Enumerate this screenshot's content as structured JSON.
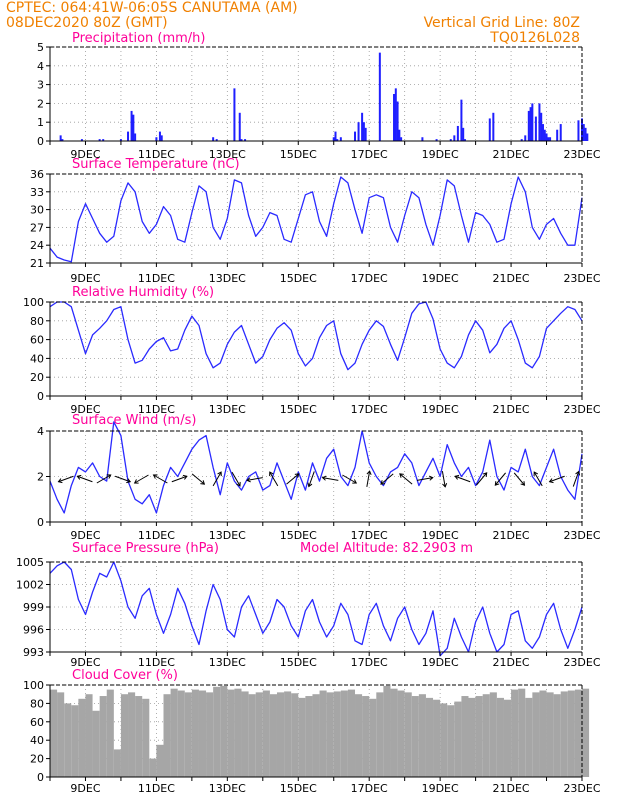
{
  "header": {
    "line1": "CPTEC:   064:41W-06:05S   CANUTAMA (AM)",
    "line2_left": "08DEC2020 80Z (GMT)",
    "line2_right": "Vertical Grid Line: 80Z",
    "line3_right": "TQ0126L028"
  },
  "colors": {
    "header": "#f08000",
    "title": "#ff0099",
    "series": "#2a2aff",
    "bar": "#1f1fff",
    "cloud": "#a6a6a6",
    "grid": "#9a9a9a"
  },
  "x_axis": {
    "start_day": 8,
    "end_day": 23,
    "labels": [
      "9DEC",
      "11DEC",
      "13DEC",
      "15DEC",
      "17DEC",
      "19DEC",
      "21DEC",
      "23DEC"
    ],
    "label_days": [
      9,
      11,
      13,
      15,
      17,
      19,
      21,
      23
    ]
  },
  "chart_data": [
    {
      "type": "bar",
      "title": "Precipitation (mm/h)",
      "ylim": [
        0,
        5
      ],
      "yticks": [
        0,
        1,
        2,
        3,
        4,
        5
      ],
      "x": [
        8.3,
        8.35,
        8.9,
        9.4,
        9.5,
        10.0,
        10.2,
        10.3,
        10.35,
        10.4,
        11.0,
        11.1,
        11.15,
        12.6,
        12.7,
        13.2,
        13.35,
        13.4,
        13.5,
        16.0,
        16.05,
        16.1,
        16.2,
        16.6,
        16.7,
        16.8,
        16.85,
        16.9,
        17.3,
        17.7,
        17.75,
        17.8,
        17.85,
        17.9,
        18.5,
        18.9,
        19.3,
        19.4,
        19.5,
        19.6,
        19.65,
        19.7,
        20.4,
        20.5,
        21.3,
        21.4,
        21.5,
        21.55,
        21.6,
        21.7,
        21.8,
        21.85,
        21.9,
        21.95,
        22.0,
        22.05,
        22.1,
        22.3,
        22.4,
        22.9,
        23.0,
        23.05,
        23.1,
        23.15
      ],
      "values": [
        0.3,
        0.1,
        0.1,
        0.1,
        0.1,
        0.1,
        0.5,
        1.6,
        1.4,
        0.4,
        0.2,
        0.5,
        0.3,
        0.2,
        0.1,
        2.8,
        1.5,
        0.1,
        0.1,
        0.2,
        0.5,
        0.1,
        0.2,
        0.5,
        1.0,
        1.5,
        1.0,
        0.7,
        4.7,
        2.5,
        2.8,
        2.1,
        0.6,
        0.2,
        0.2,
        0.1,
        0.1,
        0.3,
        0.8,
        2.2,
        0.7,
        0.1,
        1.2,
        1.5,
        0.1,
        0.3,
        1.6,
        1.8,
        2.0,
        1.3,
        2.0,
        1.5,
        0.9,
        0.6,
        0.4,
        0.2,
        0.2,
        0.6,
        0.9,
        1.1,
        1.2,
        0.9,
        0.7,
        0.4
      ]
    },
    {
      "type": "line",
      "title": "Surface Temperature (nC)",
      "ylim": [
        21,
        36
      ],
      "yticks": [
        21,
        24,
        27,
        30,
        33,
        36
      ],
      "x": [
        8.0,
        8.2,
        8.4,
        8.6,
        8.8,
        9.0,
        9.2,
        9.4,
        9.6,
        9.8,
        10.0,
        10.2,
        10.4,
        10.6,
        10.8,
        11.0,
        11.2,
        11.4,
        11.6,
        11.8,
        12.0,
        12.2,
        12.4,
        12.6,
        12.8,
        13.0,
        13.2,
        13.4,
        13.6,
        13.8,
        14.0,
        14.2,
        14.4,
        14.6,
        14.8,
        15.0,
        15.2,
        15.4,
        15.6,
        15.8,
        16.0,
        16.2,
        16.4,
        16.6,
        16.8,
        17.0,
        17.2,
        17.4,
        17.6,
        17.8,
        18.0,
        18.2,
        18.4,
        18.6,
        18.8,
        19.0,
        19.2,
        19.4,
        19.6,
        19.8,
        20.0,
        20.2,
        20.4,
        20.6,
        20.8,
        21.0,
        21.2,
        21.4,
        21.6,
        21.8,
        22.0,
        22.2,
        22.4,
        22.6,
        22.8,
        23.0
      ],
      "values": [
        23.5,
        22.0,
        21.5,
        21.2,
        28.0,
        31.0,
        28.5,
        26.0,
        24.5,
        25.5,
        31.5,
        34.5,
        33.0,
        28.0,
        26.0,
        27.5,
        30.5,
        29.0,
        25.0,
        24.5,
        29.5,
        34.0,
        33.0,
        27.0,
        25.0,
        28.5,
        35.0,
        34.5,
        29.0,
        25.5,
        27.0,
        29.5,
        29.0,
        25.0,
        24.5,
        28.5,
        32.5,
        33.0,
        28.0,
        25.5,
        31.0,
        35.5,
        34.5,
        30.0,
        26.0,
        32.0,
        32.5,
        32.0,
        27.0,
        24.5,
        29.0,
        33.0,
        32.0,
        27.5,
        24.0,
        29.0,
        35.0,
        34.0,
        29.0,
        24.5,
        29.5,
        29.0,
        27.5,
        24.5,
        25.0,
        31.0,
        35.5,
        33.0,
        27.0,
        25.0,
        27.5,
        28.5,
        26.0,
        24.0,
        24.0,
        32.0
      ]
    },
    {
      "type": "line",
      "title": "Relative Humidity (%)",
      "ylim": [
        0,
        100
      ],
      "yticks": [
        0,
        20,
        40,
        60,
        80,
        100
      ],
      "x": [
        8.0,
        8.2,
        8.4,
        8.6,
        8.8,
        9.0,
        9.2,
        9.4,
        9.6,
        9.8,
        10.0,
        10.2,
        10.4,
        10.6,
        10.8,
        11.0,
        11.2,
        11.4,
        11.6,
        11.8,
        12.0,
        12.2,
        12.4,
        12.6,
        12.8,
        13.0,
        13.2,
        13.4,
        13.6,
        13.8,
        14.0,
        14.2,
        14.4,
        14.6,
        14.8,
        15.0,
        15.2,
        15.4,
        15.6,
        15.8,
        16.0,
        16.2,
        16.4,
        16.6,
        16.8,
        17.0,
        17.2,
        17.4,
        17.6,
        17.8,
        18.0,
        18.2,
        18.4,
        18.6,
        18.8,
        19.0,
        19.2,
        19.4,
        19.6,
        19.8,
        20.0,
        20.2,
        20.4,
        20.6,
        20.8,
        21.0,
        21.2,
        21.4,
        21.6,
        21.8,
        22.0,
        22.2,
        22.4,
        22.6,
        22.8,
        23.0
      ],
      "values": [
        95,
        100,
        100,
        95,
        70,
        45,
        65,
        72,
        80,
        92,
        95,
        60,
        35,
        38,
        50,
        58,
        62,
        48,
        50,
        70,
        85,
        75,
        45,
        30,
        35,
        55,
        68,
        75,
        55,
        35,
        42,
        60,
        72,
        78,
        70,
        45,
        32,
        40,
        62,
        75,
        80,
        45,
        28,
        35,
        55,
        70,
        80,
        74,
        55,
        38,
        62,
        88,
        98,
        100,
        82,
        50,
        35,
        30,
        42,
        65,
        80,
        70,
        46,
        55,
        72,
        80,
        60,
        35,
        30,
        42,
        72,
        80,
        88,
        95,
        92,
        80
      ]
    },
    {
      "type": "line",
      "title": "Surface Wind (m/s)",
      "ylim": [
        0,
        4
      ],
      "yticks": [
        0,
        2,
        4
      ],
      "x": [
        8.0,
        8.2,
        8.4,
        8.6,
        8.8,
        9.0,
        9.2,
        9.4,
        9.6,
        9.8,
        10.0,
        10.2,
        10.4,
        10.6,
        10.8,
        11.0,
        11.2,
        11.4,
        11.6,
        11.8,
        12.0,
        12.2,
        12.4,
        12.6,
        12.8,
        13.0,
        13.2,
        13.4,
        13.6,
        13.8,
        14.0,
        14.2,
        14.4,
        14.6,
        14.8,
        15.0,
        15.2,
        15.4,
        15.6,
        15.8,
        16.0,
        16.2,
        16.4,
        16.6,
        16.8,
        17.0,
        17.2,
        17.4,
        17.6,
        17.8,
        18.0,
        18.2,
        18.4,
        18.6,
        18.8,
        19.0,
        19.2,
        19.4,
        19.6,
        19.8,
        20.0,
        20.2,
        20.4,
        20.6,
        20.8,
        21.0,
        21.2,
        21.4,
        21.6,
        21.8,
        22.0,
        22.2,
        22.4,
        22.6,
        22.8,
        23.0
      ],
      "values": [
        1.8,
        1.0,
        0.4,
        1.6,
        2.4,
        2.2,
        2.6,
        2.0,
        1.8,
        4.4,
        3.8,
        1.8,
        1.0,
        0.8,
        1.2,
        0.4,
        1.6,
        2.4,
        2.0,
        2.6,
        3.2,
        3.6,
        3.8,
        2.4,
        1.2,
        2.6,
        1.8,
        1.4,
        2.0,
        2.2,
        1.4,
        1.6,
        2.6,
        1.8,
        1.0,
        2.2,
        1.4,
        2.6,
        1.8,
        2.8,
        3.2,
        2.0,
        1.6,
        2.4,
        4.0,
        2.6,
        2.0,
        1.6,
        2.2,
        2.4,
        3.0,
        2.6,
        1.6,
        2.2,
        2.8,
        2.0,
        3.4,
        2.6,
        2.0,
        2.4,
        1.6,
        2.2,
        3.6,
        2.0,
        1.4,
        2.4,
        2.2,
        3.2,
        2.0,
        1.6,
        2.4,
        3.2,
        2.0,
        1.4,
        1.0,
        3.0
      ]
    },
    {
      "type": "line",
      "title": "Surface Pressure (hPa)",
      "subtitle": "Model Altitude: 82.2903 m",
      "ylim": [
        993,
        1005
      ],
      "yticks": [
        993,
        996,
        999,
        1002,
        1005
      ],
      "x": [
        8.0,
        8.2,
        8.4,
        8.6,
        8.8,
        9.0,
        9.2,
        9.4,
        9.6,
        9.8,
        10.0,
        10.2,
        10.4,
        10.6,
        10.8,
        11.0,
        11.2,
        11.4,
        11.6,
        11.8,
        12.0,
        12.2,
        12.4,
        12.6,
        12.8,
        13.0,
        13.2,
        13.4,
        13.6,
        13.8,
        14.0,
        14.2,
        14.4,
        14.6,
        14.8,
        15.0,
        15.2,
        15.4,
        15.6,
        15.8,
        16.0,
        16.2,
        16.4,
        16.6,
        16.8,
        17.0,
        17.2,
        17.4,
        17.6,
        17.8,
        18.0,
        18.2,
        18.4,
        18.6,
        18.8,
        19.0,
        19.2,
        19.4,
        19.6,
        19.8,
        20.0,
        20.2,
        20.4,
        20.6,
        20.8,
        21.0,
        21.2,
        21.4,
        21.6,
        21.8,
        22.0,
        22.2,
        22.4,
        22.6,
        22.8,
        23.0
      ],
      "values": [
        1003.5,
        1004.5,
        1005.0,
        1004.0,
        1000.0,
        998.0,
        1001.0,
        1003.5,
        1003.0,
        1005.0,
        1002.5,
        999.0,
        997.5,
        1000.5,
        1001.5,
        998.0,
        995.5,
        998.0,
        1001.5,
        999.5,
        996.5,
        994.0,
        998.5,
        1002.0,
        1000.0,
        996.0,
        995.0,
        999.0,
        1000.5,
        998.0,
        995.5,
        997.0,
        1000.0,
        999.0,
        996.5,
        995.0,
        998.5,
        1000.0,
        997.0,
        995.0,
        996.5,
        999.5,
        998.0,
        994.5,
        994.0,
        998.0,
        999.5,
        996.5,
        994.5,
        997.5,
        999.0,
        996.0,
        994.0,
        995.5,
        998.5,
        992.5,
        993.5,
        997.5,
        995.0,
        993.0,
        997.0,
        999.0,
        995.5,
        993.0,
        994.0,
        998.0,
        998.5,
        994.5,
        993.5,
        995.0,
        998.0,
        999.5,
        996.0,
        993.5,
        996.0,
        999.0
      ]
    },
    {
      "type": "bar",
      "title": "Cloud Cover (%)",
      "ylim": [
        0,
        100
      ],
      "yticks": [
        0,
        20,
        40,
        60,
        80,
        100
      ],
      "x": [
        8.0,
        8.2,
        8.4,
        8.6,
        8.8,
        9.0,
        9.2,
        9.4,
        9.6,
        9.8,
        10.0,
        10.2,
        10.4,
        10.6,
        10.8,
        11.0,
        11.2,
        11.4,
        11.6,
        11.8,
        12.0,
        12.2,
        12.4,
        12.6,
        12.8,
        13.0,
        13.2,
        13.4,
        13.6,
        13.8,
        14.0,
        14.2,
        14.4,
        14.6,
        14.8,
        15.0,
        15.2,
        15.4,
        15.6,
        15.8,
        16.0,
        16.2,
        16.4,
        16.6,
        16.8,
        17.0,
        17.2,
        17.4,
        17.6,
        17.8,
        18.0,
        18.2,
        18.4,
        18.6,
        18.8,
        19.0,
        19.2,
        19.4,
        19.6,
        19.8,
        20.0,
        20.2,
        20.4,
        20.6,
        20.8,
        21.0,
        21.2,
        21.4,
        21.6,
        21.8,
        22.0,
        22.2,
        22.4,
        22.6,
        22.8,
        23.0
      ],
      "values": [
        95,
        92,
        80,
        78,
        85,
        90,
        72,
        88,
        95,
        30,
        90,
        92,
        88,
        85,
        20,
        35,
        90,
        96,
        94,
        92,
        95,
        94,
        92,
        98,
        99,
        95,
        96,
        93,
        90,
        92,
        94,
        90,
        92,
        93,
        91,
        86,
        88,
        90,
        94,
        92,
        93,
        94,
        95,
        90,
        88,
        85,
        92,
        99,
        96,
        94,
        92,
        88,
        90,
        86,
        84,
        80,
        78,
        82,
        88,
        86,
        88,
        90,
        92,
        86,
        84,
        95,
        96,
        86,
        92,
        94,
        92,
        90,
        93,
        94,
        95,
        96
      ]
    }
  ]
}
